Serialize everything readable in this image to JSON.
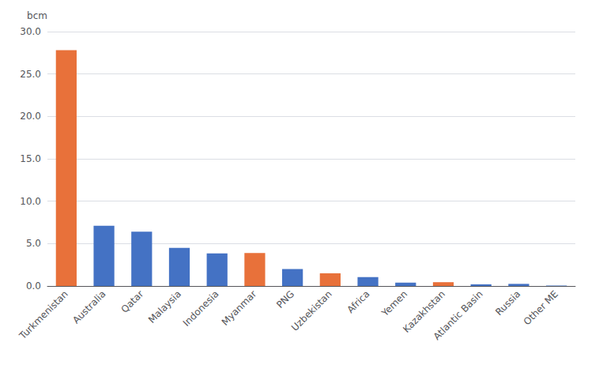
{
  "chart_data": {
    "type": "bar",
    "categories": [
      "Turkmenistan",
      "Australia",
      "Qatar",
      "Malaysia",
      "Indonesia",
      "Myanmar",
      "PNG",
      "Uzbekistan",
      "Africa",
      "Yemen",
      "Kazakhstan",
      "Atlantic Basin",
      "Russia",
      "Other ME"
    ],
    "values": [
      27.8,
      7.1,
      6.4,
      4.5,
      3.85,
      3.9,
      2.0,
      1.5,
      1.05,
      0.4,
      0.45,
      0.2,
      0.25,
      0.05
    ],
    "colors": [
      "#E8713A",
      "#4472C4",
      "#4472C4",
      "#4472C4",
      "#4472C4",
      "#E8713A",
      "#4472C4",
      "#E8713A",
      "#4472C4",
      "#4472C4",
      "#E8713A",
      "#4472C4",
      "#4472C4",
      "#4472C4"
    ],
    "ylabel": "bcm",
    "ylim": [
      0,
      30.0
    ],
    "yticks": [
      {
        "value": 0.0,
        "label": "0.0"
      },
      {
        "value": 5.0,
        "label": "5.0"
      },
      {
        "value": 10.0,
        "label": "10.0"
      },
      {
        "value": 15.0,
        "label": "15.0"
      },
      {
        "value": 20.0,
        "label": "20.0"
      },
      {
        "value": 25.0,
        "label": "25.0"
      },
      {
        "value": 30.0,
        "label": "30.0"
      }
    ],
    "grid": true
  }
}
